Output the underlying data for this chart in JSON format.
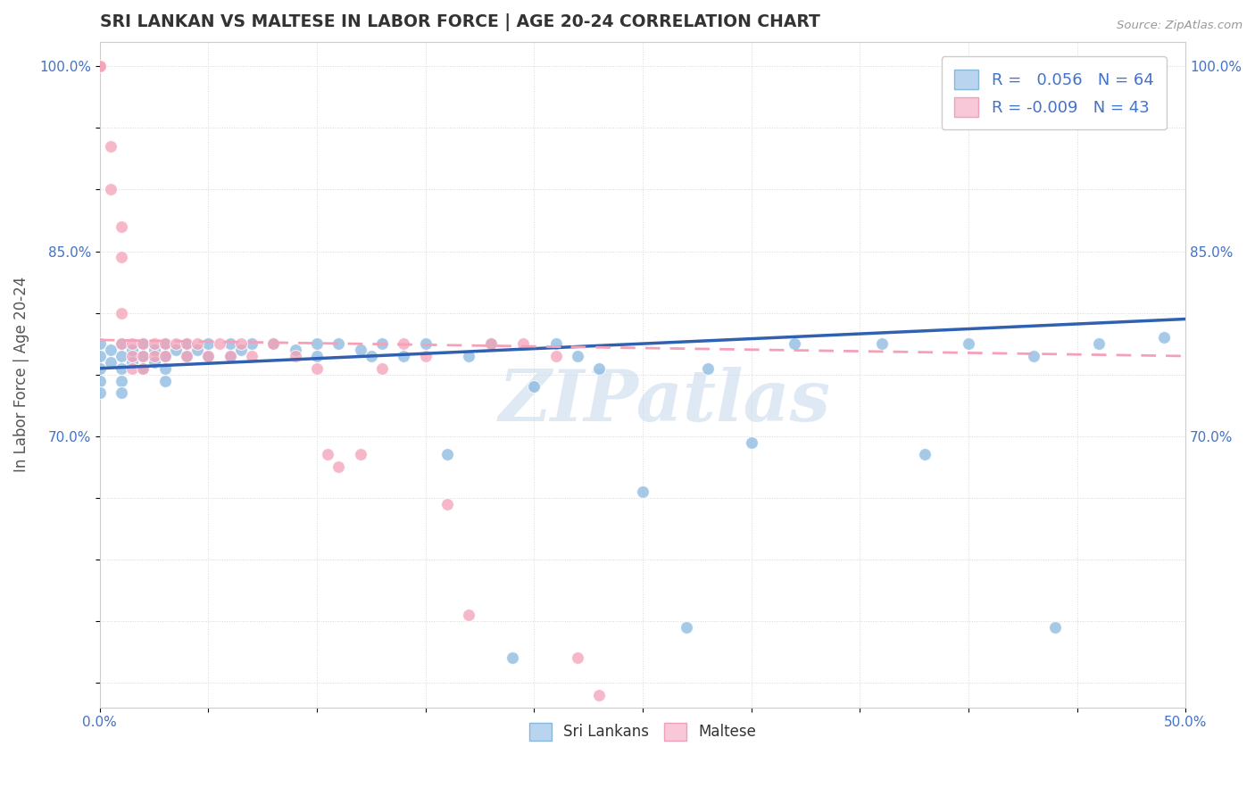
{
  "title": "SRI LANKAN VS MALTESE IN LABOR FORCE | AGE 20-24 CORRELATION CHART",
  "source_text": "Source: ZipAtlas.com",
  "ylabel": "In Labor Force | Age 20-24",
  "xlim": [
    0.0,
    0.5
  ],
  "ylim": [
    0.48,
    1.02
  ],
  "xticks": [
    0.0,
    0.05,
    0.1,
    0.15,
    0.2,
    0.25,
    0.3,
    0.35,
    0.4,
    0.45,
    0.5
  ],
  "xticklabels": [
    "0.0%",
    "",
    "",
    "",
    "",
    "",
    "",
    "",
    "",
    "",
    "50.0%"
  ],
  "yticks": [
    0.5,
    0.55,
    0.6,
    0.65,
    0.7,
    0.75,
    0.8,
    0.85,
    0.9,
    0.95,
    1.0
  ],
  "yticklabels": [
    "",
    "",
    "",
    "",
    "70.0%",
    "",
    "",
    "85.0%",
    "",
    "",
    "100.0%"
  ],
  "sri_lankan_color": "#88b8e0",
  "maltese_color": "#f4a0b8",
  "sri_lankan_R": 0.056,
  "sri_lankan_N": 64,
  "maltese_R": -0.009,
  "maltese_N": 43,
  "watermark": "ZIPatlas",
  "sl_x": [
    0.0,
    0.0,
    0.0,
    0.0,
    0.0,
    0.005,
    0.005,
    0.01,
    0.01,
    0.01,
    0.01,
    0.01,
    0.015,
    0.015,
    0.02,
    0.02,
    0.02,
    0.025,
    0.025,
    0.03,
    0.03,
    0.03,
    0.03,
    0.035,
    0.04,
    0.04,
    0.045,
    0.05,
    0.05,
    0.06,
    0.06,
    0.065,
    0.07,
    0.08,
    0.09,
    0.1,
    0.1,
    0.11,
    0.12,
    0.125,
    0.13,
    0.14,
    0.15,
    0.16,
    0.17,
    0.18,
    0.19,
    0.2,
    0.21,
    0.22,
    0.23,
    0.25,
    0.27,
    0.28,
    0.3,
    0.32,
    0.36,
    0.38,
    0.4,
    0.43,
    0.44,
    0.46,
    0.48,
    0.49
  ],
  "sl_y": [
    0.775,
    0.765,
    0.755,
    0.745,
    0.735,
    0.77,
    0.76,
    0.775,
    0.765,
    0.755,
    0.745,
    0.735,
    0.77,
    0.76,
    0.775,
    0.765,
    0.755,
    0.77,
    0.76,
    0.775,
    0.765,
    0.755,
    0.745,
    0.77,
    0.775,
    0.765,
    0.77,
    0.775,
    0.765,
    0.775,
    0.765,
    0.77,
    0.775,
    0.775,
    0.77,
    0.775,
    0.765,
    0.775,
    0.77,
    0.765,
    0.775,
    0.765,
    0.775,
    0.685,
    0.765,
    0.775,
    0.52,
    0.74,
    0.775,
    0.765,
    0.755,
    0.655,
    0.545,
    0.755,
    0.695,
    0.775,
    0.775,
    0.685,
    0.775,
    0.765,
    0.545,
    0.775,
    0.99,
    0.78
  ],
  "mt_x": [
    0.0,
    0.0,
    0.005,
    0.005,
    0.01,
    0.01,
    0.01,
    0.01,
    0.015,
    0.015,
    0.015,
    0.02,
    0.02,
    0.02,
    0.025,
    0.025,
    0.03,
    0.03,
    0.035,
    0.04,
    0.04,
    0.045,
    0.05,
    0.055,
    0.06,
    0.065,
    0.07,
    0.08,
    0.09,
    0.1,
    0.105,
    0.11,
    0.12,
    0.13,
    0.14,
    0.15,
    0.16,
    0.17,
    0.18,
    0.195,
    0.21,
    0.22,
    0.23
  ],
  "mt_y": [
    1.0,
    1.0,
    0.935,
    0.9,
    0.87,
    0.845,
    0.8,
    0.775,
    0.775,
    0.765,
    0.755,
    0.775,
    0.765,
    0.755,
    0.775,
    0.765,
    0.775,
    0.765,
    0.775,
    0.775,
    0.765,
    0.775,
    0.765,
    0.775,
    0.765,
    0.775,
    0.765,
    0.775,
    0.765,
    0.755,
    0.685,
    0.675,
    0.685,
    0.755,
    0.775,
    0.765,
    0.645,
    0.555,
    0.775,
    0.775,
    0.765,
    0.52,
    0.49
  ],
  "sl_trend_x": [
    0.0,
    0.5
  ],
  "sl_trend_y": [
    0.755,
    0.795
  ],
  "mt_trend_x": [
    0.0,
    0.23
  ],
  "mt_trend_y": [
    0.778,
    0.772
  ]
}
